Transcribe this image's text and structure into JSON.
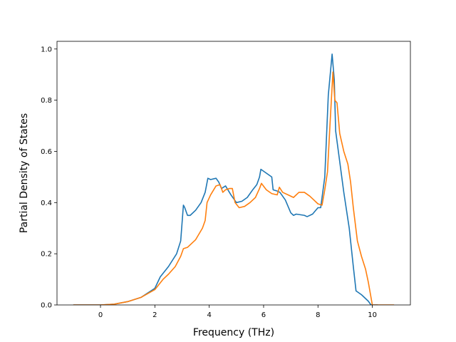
{
  "chart_data": {
    "type": "line",
    "title": "",
    "xlabel": "Frequency (THz)",
    "ylabel": "Partial Density of States",
    "xlim": [
      -1.6,
      11.4
    ],
    "ylim": [
      0.0,
      1.03
    ],
    "xticks": [
      0,
      2,
      4,
      6,
      8,
      10
    ],
    "yticks": [
      0.0,
      0.2,
      0.4,
      0.6,
      0.8,
      1.0
    ],
    "xtick_labels": [
      "0",
      "2",
      "4",
      "6",
      "8",
      "10"
    ],
    "ytick_labels": [
      "0.0",
      "0.2",
      "0.4",
      "0.6",
      "0.8",
      "1.0"
    ],
    "grid": false,
    "legend": false,
    "series": [
      {
        "color": "#1f77b4",
        "points": [
          [
            -1.0,
            0.0
          ],
          [
            0.0,
            0.0
          ],
          [
            0.5,
            0.003
          ],
          [
            1.0,
            0.013
          ],
          [
            1.5,
            0.03
          ],
          [
            2.0,
            0.065
          ],
          [
            2.2,
            0.11
          ],
          [
            2.5,
            0.15
          ],
          [
            2.8,
            0.2
          ],
          [
            2.95,
            0.25
          ],
          [
            3.05,
            0.39
          ],
          [
            3.1,
            0.38
          ],
          [
            3.2,
            0.35
          ],
          [
            3.3,
            0.35
          ],
          [
            3.5,
            0.37
          ],
          [
            3.7,
            0.4
          ],
          [
            3.85,
            0.44
          ],
          [
            3.95,
            0.495
          ],
          [
            4.05,
            0.49
          ],
          [
            4.25,
            0.495
          ],
          [
            4.35,
            0.48
          ],
          [
            4.45,
            0.455
          ],
          [
            4.6,
            0.465
          ],
          [
            4.8,
            0.43
          ],
          [
            5.0,
            0.4
          ],
          [
            5.2,
            0.405
          ],
          [
            5.4,
            0.42
          ],
          [
            5.6,
            0.45
          ],
          [
            5.75,
            0.47
          ],
          [
            5.85,
            0.5
          ],
          [
            5.9,
            0.53
          ],
          [
            6.1,
            0.515
          ],
          [
            6.3,
            0.5
          ],
          [
            6.35,
            0.45
          ],
          [
            6.5,
            0.445
          ],
          [
            6.6,
            0.44
          ],
          [
            6.8,
            0.41
          ],
          [
            7.0,
            0.36
          ],
          [
            7.1,
            0.35
          ],
          [
            7.2,
            0.355
          ],
          [
            7.5,
            0.35
          ],
          [
            7.6,
            0.345
          ],
          [
            7.8,
            0.355
          ],
          [
            8.0,
            0.38
          ],
          [
            8.1,
            0.38
          ],
          [
            8.25,
            0.5
          ],
          [
            8.38,
            0.82
          ],
          [
            8.52,
            0.98
          ],
          [
            8.6,
            0.88
          ],
          [
            8.65,
            0.68
          ],
          [
            8.8,
            0.56
          ],
          [
            8.95,
            0.44
          ],
          [
            9.15,
            0.3
          ],
          [
            9.3,
            0.15
          ],
          [
            9.4,
            0.055
          ],
          [
            9.6,
            0.04
          ],
          [
            9.85,
            0.015
          ],
          [
            9.95,
            0.0
          ],
          [
            10.2,
            0.0
          ]
        ]
      },
      {
        "color": "#ff7f0e",
        "points": [
          [
            -1.0,
            0.0
          ],
          [
            0.0,
            0.0
          ],
          [
            0.5,
            0.003
          ],
          [
            1.0,
            0.013
          ],
          [
            1.5,
            0.03
          ],
          [
            2.0,
            0.06
          ],
          [
            2.3,
            0.1
          ],
          [
            2.5,
            0.12
          ],
          [
            2.75,
            0.15
          ],
          [
            2.95,
            0.19
          ],
          [
            3.05,
            0.22
          ],
          [
            3.2,
            0.225
          ],
          [
            3.5,
            0.255
          ],
          [
            3.75,
            0.3
          ],
          [
            3.85,
            0.33
          ],
          [
            3.92,
            0.4
          ],
          [
            4.05,
            0.43
          ],
          [
            4.25,
            0.465
          ],
          [
            4.4,
            0.47
          ],
          [
            4.5,
            0.44
          ],
          [
            4.6,
            0.45
          ],
          [
            4.75,
            0.455
          ],
          [
            4.85,
            0.455
          ],
          [
            4.95,
            0.4
          ],
          [
            5.1,
            0.38
          ],
          [
            5.3,
            0.385
          ],
          [
            5.5,
            0.4
          ],
          [
            5.7,
            0.42
          ],
          [
            5.85,
            0.455
          ],
          [
            5.92,
            0.475
          ],
          [
            6.1,
            0.45
          ],
          [
            6.3,
            0.435
          ],
          [
            6.5,
            0.43
          ],
          [
            6.58,
            0.46
          ],
          [
            6.7,
            0.44
          ],
          [
            6.9,
            0.43
          ],
          [
            7.1,
            0.42
          ],
          [
            7.3,
            0.44
          ],
          [
            7.5,
            0.44
          ],
          [
            7.7,
            0.425
          ],
          [
            7.85,
            0.41
          ],
          [
            8.0,
            0.395
          ],
          [
            8.15,
            0.39
          ],
          [
            8.25,
            0.45
          ],
          [
            8.35,
            0.52
          ],
          [
            8.45,
            0.72
          ],
          [
            8.55,
            0.91
          ],
          [
            8.62,
            0.8
          ],
          [
            8.7,
            0.79
          ],
          [
            8.8,
            0.67
          ],
          [
            8.95,
            0.6
          ],
          [
            9.1,
            0.55
          ],
          [
            9.2,
            0.48
          ],
          [
            9.3,
            0.38
          ],
          [
            9.45,
            0.25
          ],
          [
            9.6,
            0.19
          ],
          [
            9.75,
            0.14
          ],
          [
            9.85,
            0.09
          ],
          [
            10.0,
            0.0
          ],
          [
            10.8,
            0.0
          ]
        ]
      }
    ]
  }
}
